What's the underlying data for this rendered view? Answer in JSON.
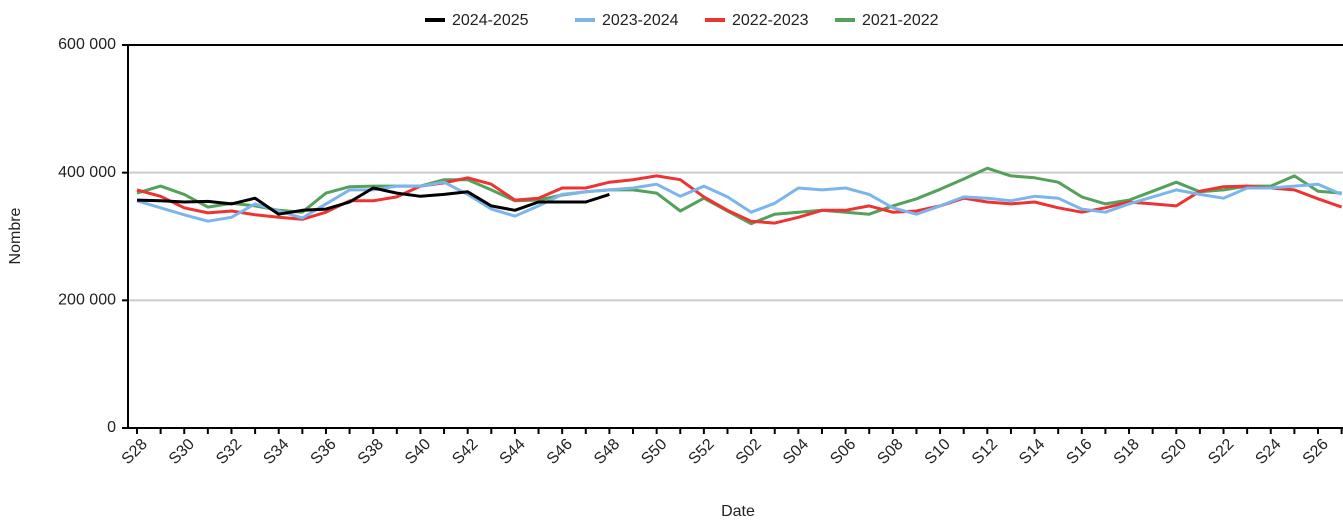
{
  "chart_data": {
    "type": "line",
    "x_label": "Date",
    "y_label": "Nombre",
    "categories": [
      "S28",
      null,
      "S30",
      null,
      "S32",
      null,
      "S34",
      null,
      "S36",
      null,
      "S38",
      null,
      "S40",
      null,
      "S42",
      null,
      "S44",
      null,
      "S46",
      null,
      "S48",
      null,
      "S50",
      null,
      "S52",
      null,
      "S02",
      null,
      "S04",
      null,
      "S06",
      null,
      "S08",
      null,
      "S10",
      null,
      "S12",
      null,
      "S14",
      null,
      "S16",
      null,
      "S18",
      null,
      "S20",
      null,
      "S22",
      null,
      "S24",
      null,
      "S26",
      null
    ],
    "series": [
      {
        "name": "2024-2025",
        "color": "#000000",
        "values": [
          357000,
          356000,
          354000,
          355000,
          351000,
          360000,
          335000,
          341000,
          343000,
          354000,
          376000,
          368000,
          363000,
          366000,
          370000,
          348000,
          341000,
          354000,
          354000,
          354000,
          366000,
          null,
          null,
          null,
          null,
          null,
          null,
          null,
          null,
          null,
          null,
          null,
          null,
          null,
          null,
          null,
          null,
          null,
          null,
          null,
          null,
          null,
          null,
          null,
          null,
          null,
          null,
          null,
          null,
          null,
          null,
          null
        ]
      },
      {
        "name": "2023-2024",
        "color": "#7cb5ec",
        "values": [
          356000,
          345000,
          334000,
          324000,
          330000,
          351000,
          340000,
          329000,
          351000,
          373000,
          373000,
          379000,
          379000,
          385000,
          366000,
          343000,
          332000,
          348000,
          366000,
          370000,
          373000,
          376000,
          382000,
          363000,
          379000,
          362000,
          338000,
          352000,
          376000,
          373000,
          376000,
          366000,
          345000,
          335000,
          348000,
          362000,
          360000,
          356000,
          363000,
          360000,
          343000,
          338000,
          351000,
          362000,
          373000,
          366000,
          360000,
          376000,
          376000,
          379000,
          382000,
          366000
        ]
      },
      {
        "name": "2022-2023",
        "color": "#ee3333",
        "values": [
          373000,
          363000,
          345000,
          337000,
          340000,
          334000,
          330000,
          327000,
          338000,
          356000,
          356000,
          362000,
          379000,
          384000,
          392000,
          382000,
          357000,
          360000,
          376000,
          376000,
          385000,
          389000,
          395000,
          389000,
          362000,
          341000,
          324000,
          321000,
          330000,
          341000,
          341000,
          348000,
          338000,
          340000,
          348000,
          360000,
          354000,
          351000,
          354000,
          345000,
          338000,
          345000,
          354000,
          351000,
          348000,
          371000,
          378000,
          379000,
          376000,
          373000,
          359000,
          346000
        ]
      },
      {
        "name": "2021-2022",
        "color": "#55a05a",
        "values": [
          368000,
          379000,
          366000,
          346000,
          352000,
          348000,
          341000,
          338000,
          368000,
          378000,
          379000,
          379000,
          379000,
          389000,
          389000,
          373000,
          356000,
          357000,
          365000,
          370000,
          373000,
          373000,
          368000,
          340000,
          360000,
          340000,
          320000,
          335000,
          338000,
          341000,
          338000,
          335000,
          348000,
          359000,
          374000,
          390000,
          407000,
          395000,
          392000,
          385000,
          362000,
          351000,
          357000,
          371000,
          385000,
          370000,
          373000,
          379000,
          379000,
          395000,
          371000,
          368000
        ]
      }
    ],
    "ylim": [
      0,
      600000
    ],
    "yticks": [
      0,
      {
        "value": 200000,
        "label": "200 000"
      },
      {
        "value": 400000,
        "label": "400 000"
      },
      {
        "value": 600000,
        "label": "600 000"
      }
    ],
    "grid": true,
    "legend": "top"
  }
}
